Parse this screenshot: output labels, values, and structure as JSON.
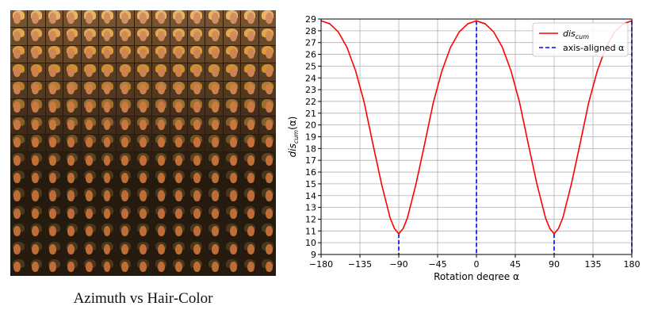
{
  "figure_caption": "Azimuth vs Hair-Color",
  "grid": {
    "rows": 15,
    "cols": 15
  },
  "colors": {
    "curve": "#ff0000",
    "axis_aligned": "#0000ff",
    "grid": "#b0b0b0"
  },
  "chart_data": {
    "type": "line",
    "xlabel": "Rotation degree α",
    "ylabel": "dis_cum(α)",
    "xlim": [
      -180,
      180
    ],
    "ylim": [
      9,
      29
    ],
    "xticks": [
      -180,
      -135,
      -90,
      -45,
      0,
      45,
      90,
      135,
      180
    ],
    "yticks": [
      9,
      10,
      11,
      12,
      13,
      14,
      15,
      16,
      17,
      18,
      19,
      20,
      21,
      22,
      23,
      24,
      25,
      26,
      27,
      28,
      29
    ],
    "grid": true,
    "legend_position": "upper right",
    "series": [
      {
        "name": "dis_cum",
        "style": "solid",
        "x": [
          -180,
          -170,
          -160,
          -150,
          -140,
          -130,
          -120,
          -110,
          -100,
          -95,
          -90,
          -85,
          -80,
          -70,
          -60,
          -50,
          -40,
          -30,
          -20,
          -10,
          0,
          10,
          20,
          30,
          40,
          50,
          60,
          70,
          80,
          85,
          90,
          95,
          100,
          110,
          120,
          130,
          140,
          150,
          160,
          170,
          180
        ],
        "y": [
          28.85,
          28.6,
          27.9,
          26.6,
          24.6,
          21.9,
          18.4,
          15.0,
          12.1,
          11.2,
          10.75,
          11.2,
          12.1,
          15.0,
          18.4,
          21.9,
          24.6,
          26.6,
          27.9,
          28.6,
          28.85,
          28.6,
          27.9,
          26.6,
          24.6,
          21.9,
          18.4,
          15.0,
          12.1,
          11.2,
          10.75,
          11.2,
          12.1,
          15.0,
          18.4,
          21.9,
          24.6,
          26.6,
          27.9,
          28.6,
          28.85
        ]
      },
      {
        "name": "axis-aligned α",
        "style": "dashed",
        "x": [
          -90,
          0,
          90,
          180
        ]
      }
    ],
    "legend": [
      {
        "label_base": "dis",
        "label_sub": "cum",
        "style": "solid"
      },
      {
        "label": "axis-aligned α",
        "style": "dashed"
      }
    ]
  }
}
